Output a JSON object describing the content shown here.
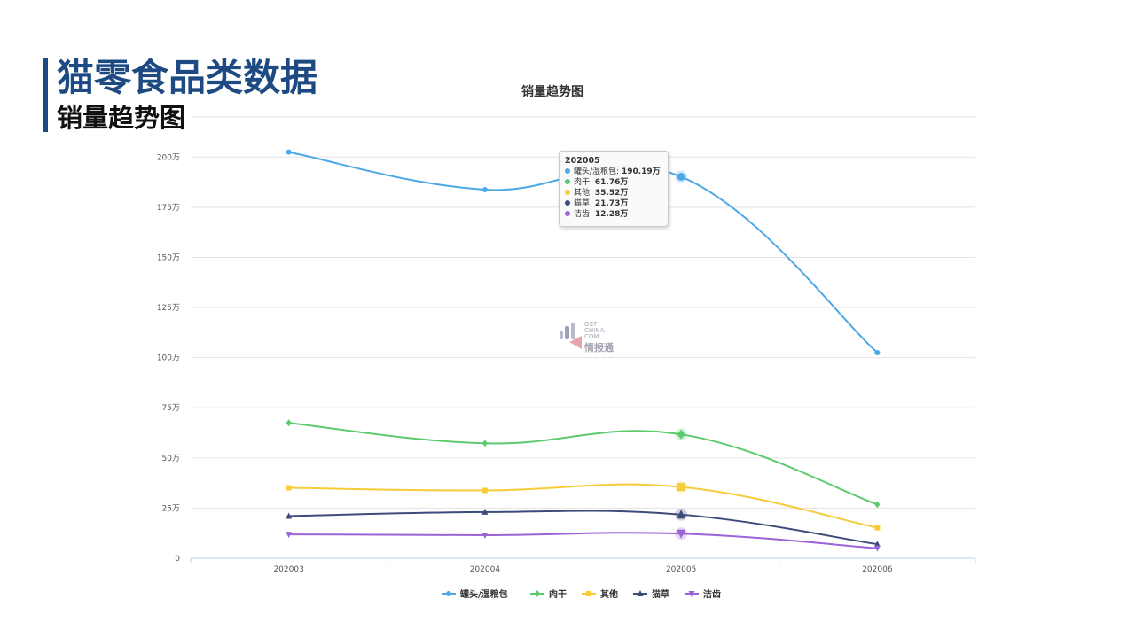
{
  "page": {
    "title": "猫零食品类数据",
    "subtitle": "销量趋势图",
    "accent_color": "#1d4a82"
  },
  "tooltip": {
    "period": "202005",
    "rows": [
      {
        "label": "罐头/湿粮包",
        "value": "190.19万",
        "color": "#4ea8e8"
      },
      {
        "label": "肉干",
        "value": "61.76万",
        "color": "#5ccb6e"
      },
      {
        "label": "其他",
        "value": "35.52万",
        "color": "#f5cd3a"
      },
      {
        "label": "猫草",
        "value": "21.73万",
        "color": "#3d4a7a"
      },
      {
        "label": "洁齿",
        "value": "12.28万",
        "color": "#9c62d8"
      }
    ]
  },
  "watermark": {
    "text_lines": [
      "OST",
      "CHINA.",
      "COM"
    ],
    "text_cn": "情报通"
  },
  "chart_data": {
    "type": "line",
    "title": "销量趋势图",
    "categories": [
      "202003",
      "202004",
      "202005",
      "202006"
    ],
    "y_unit_suffix": "万",
    "ylim": [
      0,
      200
    ],
    "yticks": [
      0,
      25,
      50,
      75,
      100,
      125,
      150,
      175,
      200
    ],
    "grid": true,
    "legend_position": "bottom-center",
    "series": [
      {
        "name": "罐头/湿粮包",
        "values": [
          202.5,
          183.8,
          190.19,
          102.5
        ],
        "color": "#4ea8e8",
        "marker": "circle"
      },
      {
        "name": "肉干",
        "values": [
          67.5,
          57.3,
          61.76,
          26.8
        ],
        "color": "#5ccb6e",
        "marker": "diamond"
      },
      {
        "name": "其他",
        "values": [
          35.1,
          33.8,
          35.52,
          15.2
        ],
        "color": "#f5cd3a",
        "marker": "square"
      },
      {
        "name": "猫草",
        "values": [
          21.0,
          23.0,
          21.73,
          7.0
        ],
        "color": "#3d4a7a",
        "marker": "triangle"
      },
      {
        "name": "洁齿",
        "values": [
          11.9,
          11.5,
          12.28,
          5.0
        ],
        "color": "#9c62d8",
        "marker": "triangle-down"
      }
    ],
    "highlighted_category": "202005"
  }
}
